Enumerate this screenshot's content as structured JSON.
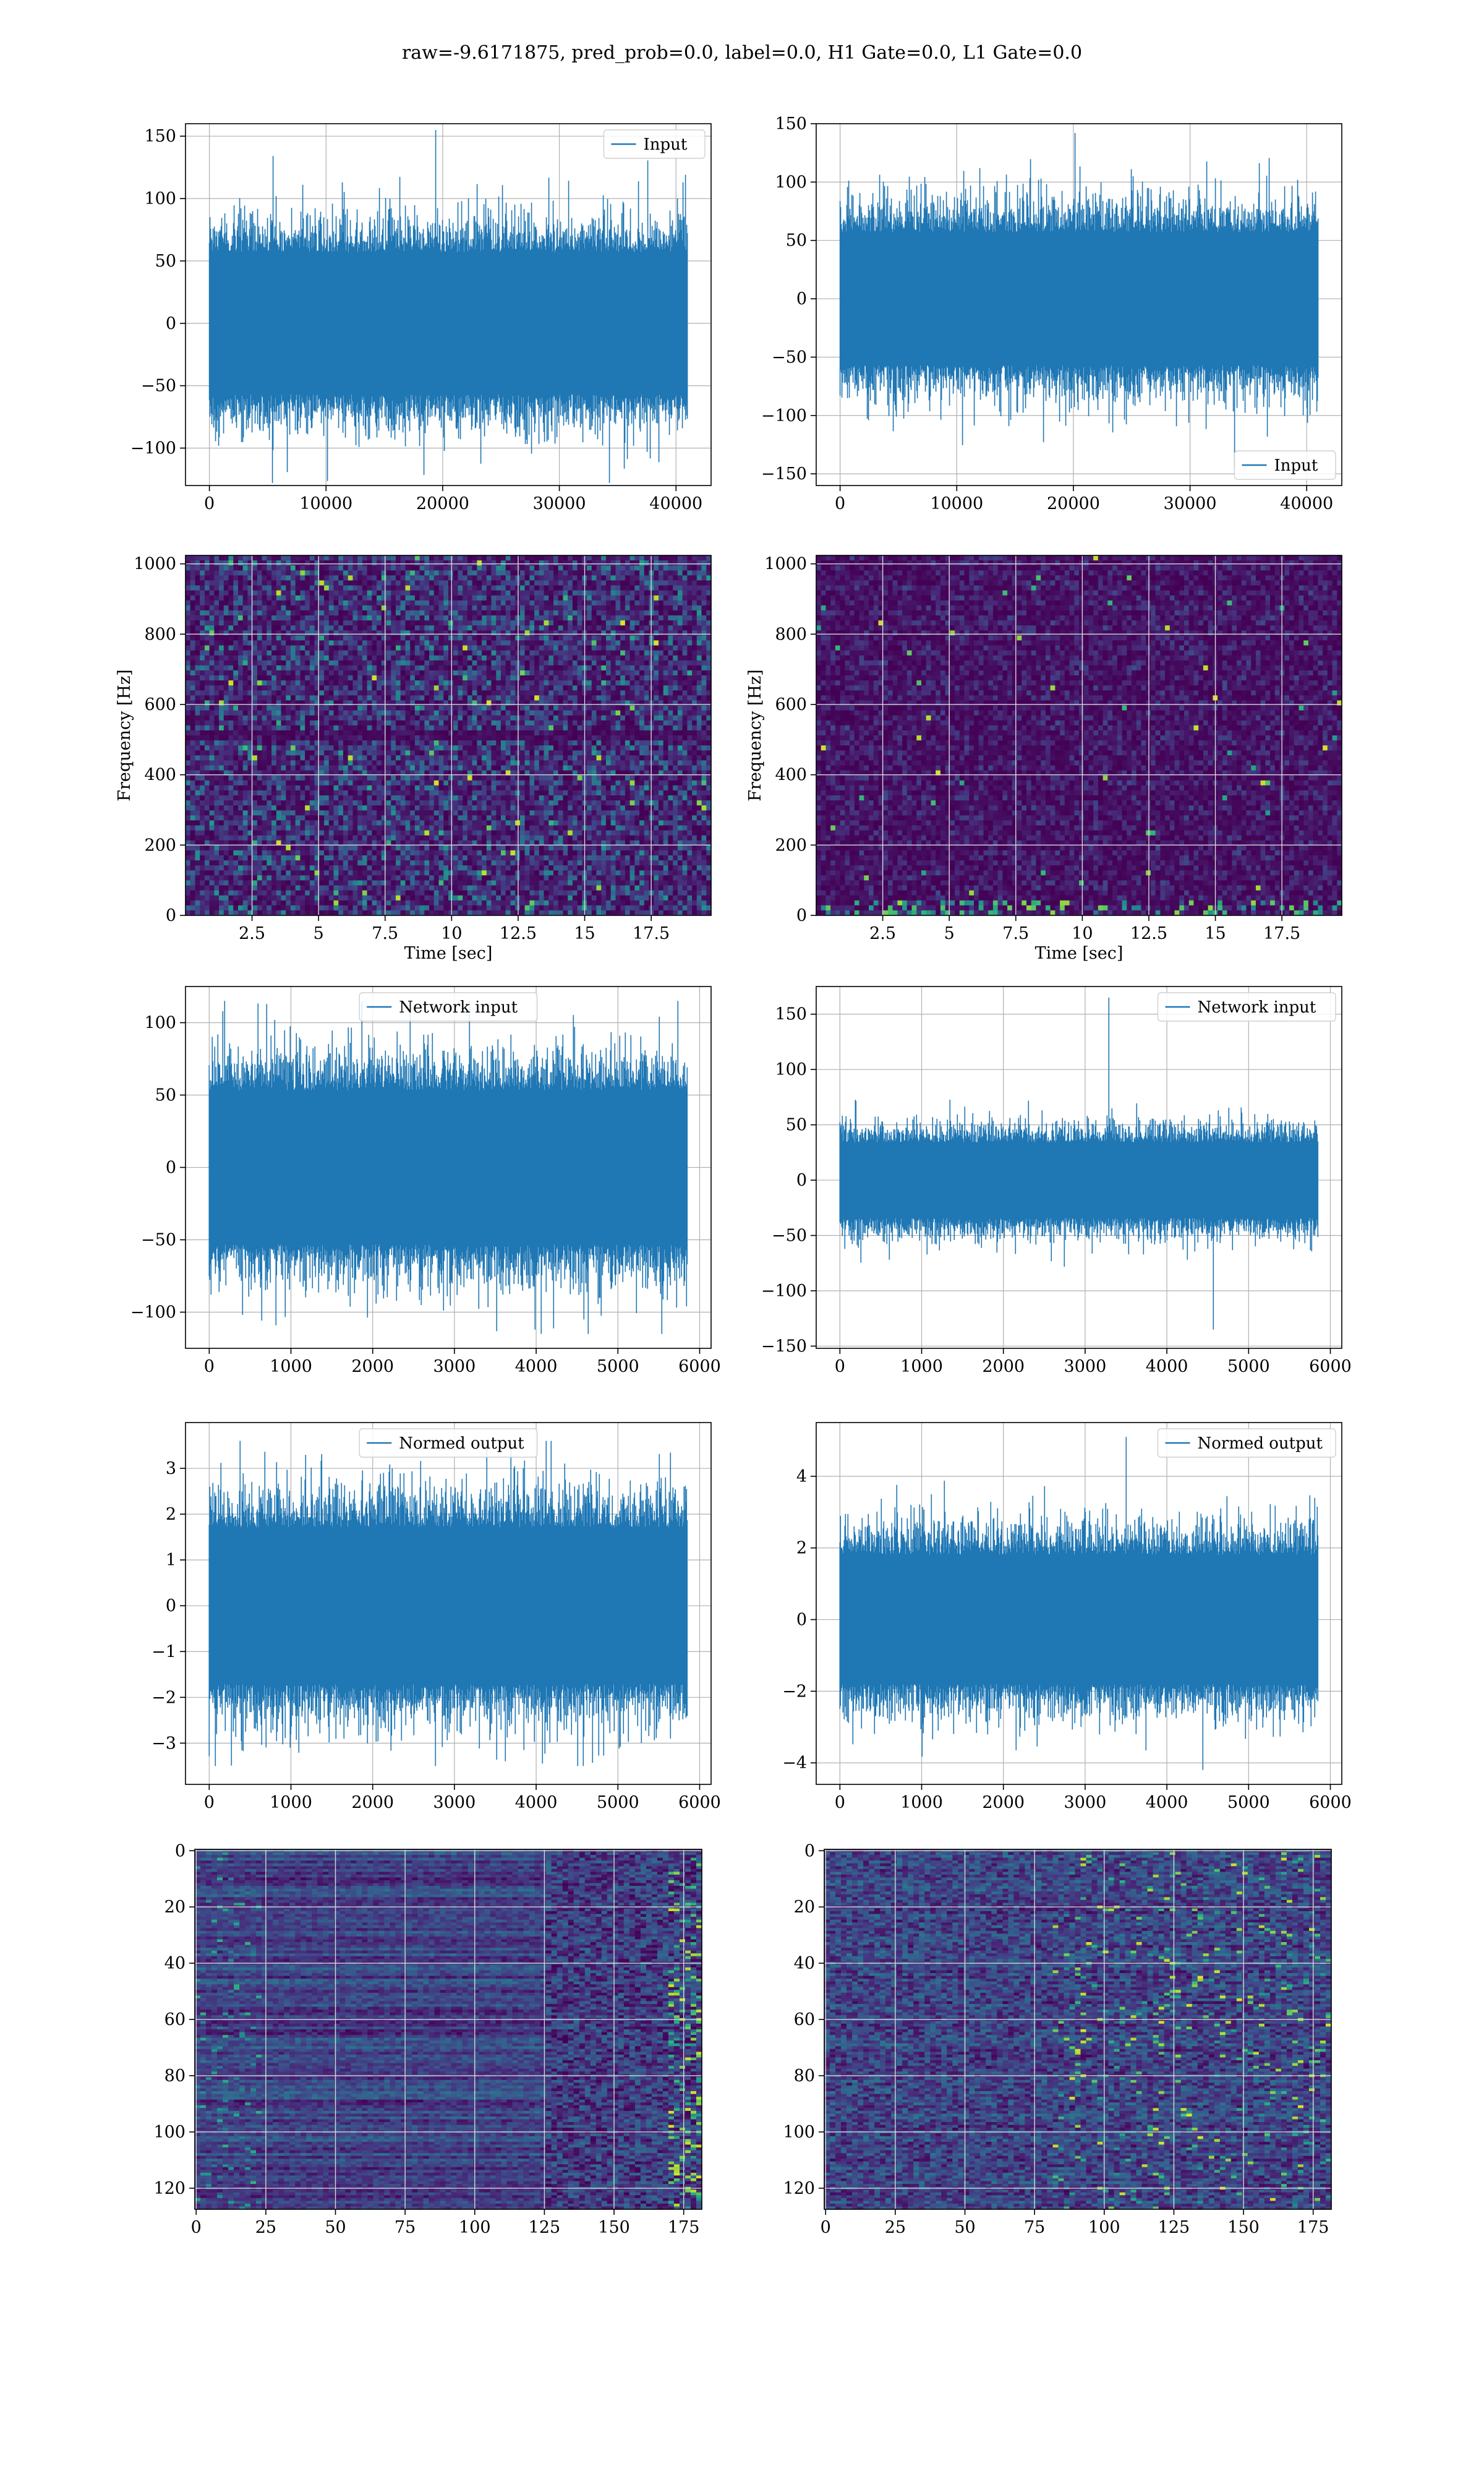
{
  "figure": {
    "suptitle": "raw=-9.6171875, pred_prob=0.0, label=0.0, H1 Gate=0.0, L1 Gate=0.0"
  },
  "colors": {
    "line": "#1f77b4",
    "grid": "#b0b0b0",
    "viridis_low": "#440154",
    "viridis_high": "#fde725"
  },
  "chart_data": [
    {
      "id": "input_left",
      "type": "line",
      "series": [
        {
          "name": "Input"
        }
      ],
      "legend": "upper right",
      "n_points": 40960,
      "xlim": [
        -2048,
        43008
      ],
      "ylim": [
        -130,
        160
      ],
      "amplitude_std": 30,
      "peak_max": 155,
      "peak_min": -128,
      "xticks": [
        0,
        10000,
        20000,
        30000,
        40000
      ],
      "yticks": [
        -100,
        -50,
        0,
        50,
        100,
        150
      ],
      "grid": true
    },
    {
      "id": "input_right",
      "type": "line",
      "series": [
        {
          "name": "Input"
        }
      ],
      "legend": "lower right",
      "n_points": 40960,
      "xlim": [
        -2048,
        43008
      ],
      "ylim": [
        -160,
        150
      ],
      "amplitude_std": 30,
      "peak_max": 142,
      "peak_min": -145,
      "xticks": [
        0,
        10000,
        20000,
        30000,
        40000
      ],
      "yticks": [
        -150,
        -100,
        -50,
        0,
        50,
        100,
        150
      ],
      "grid": true
    },
    {
      "id": "spec_left",
      "type": "heatmap",
      "colormap": "viridis",
      "xlim": [
        0.0,
        19.75
      ],
      "ylim": [
        0,
        1024
      ],
      "xlabel": "Time [sec]",
      "ylabel": "Frequency [Hz]",
      "xticks": [
        2.5,
        5.0,
        7.5,
        10.0,
        12.5,
        15.0,
        17.5
      ],
      "yticks": [
        0,
        200,
        400,
        600,
        800,
        1000
      ],
      "grid": true
    },
    {
      "id": "spec_right",
      "type": "heatmap",
      "colormap": "viridis",
      "xlim": [
        0.0,
        19.75
      ],
      "ylim": [
        0,
        1024
      ],
      "xlabel": "Time [sec]",
      "ylabel": "Frequency [Hz]",
      "xticks": [
        2.5,
        5.0,
        7.5,
        10.0,
        12.5,
        15.0,
        17.5
      ],
      "yticks": [
        0,
        200,
        400,
        600,
        800,
        1000
      ],
      "grid": true
    },
    {
      "id": "netin_left",
      "type": "line",
      "series": [
        {
          "name": "Network input"
        }
      ],
      "legend": "upper center",
      "n_points": 5850,
      "xlim": [
        -290,
        6140
      ],
      "ylim": [
        -125,
        125
      ],
      "amplitude_std": 28,
      "peak_max": 115,
      "peak_min": -115,
      "xticks": [
        0,
        1000,
        2000,
        3000,
        4000,
        5000,
        6000
      ],
      "yticks": [
        -100,
        -50,
        0,
        50,
        100
      ],
      "grid": true
    },
    {
      "id": "netin_right",
      "type": "line",
      "series": [
        {
          "name": "Network input"
        }
      ],
      "legend": "upper right",
      "n_points": 5850,
      "xlim": [
        -290,
        6140
      ],
      "ylim": [
        -152,
        175
      ],
      "amplitude_std": 18,
      "peak_max": 165,
      "peak_min": -135,
      "xticks": [
        0,
        1000,
        2000,
        3000,
        4000,
        5000,
        6000
      ],
      "yticks": [
        -150,
        -100,
        -50,
        0,
        50,
        100,
        150
      ],
      "grid": true
    },
    {
      "id": "normed_left",
      "type": "line",
      "series": [
        {
          "name": "Normed output"
        }
      ],
      "legend": "upper center",
      "n_points": 5850,
      "xlim": [
        -290,
        6140
      ],
      "ylim": [
        -3.9,
        4.0
      ],
      "amplitude_std": 0.9,
      "peak_max": 3.6,
      "peak_min": -3.5,
      "xticks": [
        0,
        1000,
        2000,
        3000,
        4000,
        5000,
        6000
      ],
      "yticks": [
        -3,
        -2,
        -1,
        0,
        1,
        2,
        3
      ],
      "grid": true
    },
    {
      "id": "normed_right",
      "type": "line",
      "series": [
        {
          "name": "Normed output"
        }
      ],
      "legend": "upper right",
      "n_points": 5850,
      "xlim": [
        -290,
        6140
      ],
      "ylim": [
        -4.6,
        5.5
      ],
      "amplitude_std": 0.95,
      "peak_max": 5.1,
      "peak_min": -4.2,
      "xticks": [
        0,
        1000,
        2000,
        3000,
        4000,
        5000,
        6000
      ],
      "yticks": [
        -4,
        -2,
        0,
        2,
        4
      ],
      "grid": true
    },
    {
      "id": "feat_left",
      "type": "heatmap",
      "colormap": "viridis",
      "xlim": [
        -0.5,
        181.5
      ],
      "ylim": [
        127.5,
        -0.5
      ],
      "xticks": [
        0,
        25,
        50,
        75,
        100,
        125,
        150,
        175
      ],
      "yticks": [
        0,
        20,
        40,
        60,
        80,
        100,
        120
      ],
      "grid": true
    },
    {
      "id": "feat_right",
      "type": "heatmap",
      "colormap": "viridis",
      "xlim": [
        -0.5,
        181.5
      ],
      "ylim": [
        127.5,
        -0.5
      ],
      "xticks": [
        0,
        25,
        50,
        75,
        100,
        125,
        150,
        175
      ],
      "yticks": [
        0,
        20,
        40,
        60,
        80,
        100,
        120
      ],
      "grid": true
    }
  ]
}
